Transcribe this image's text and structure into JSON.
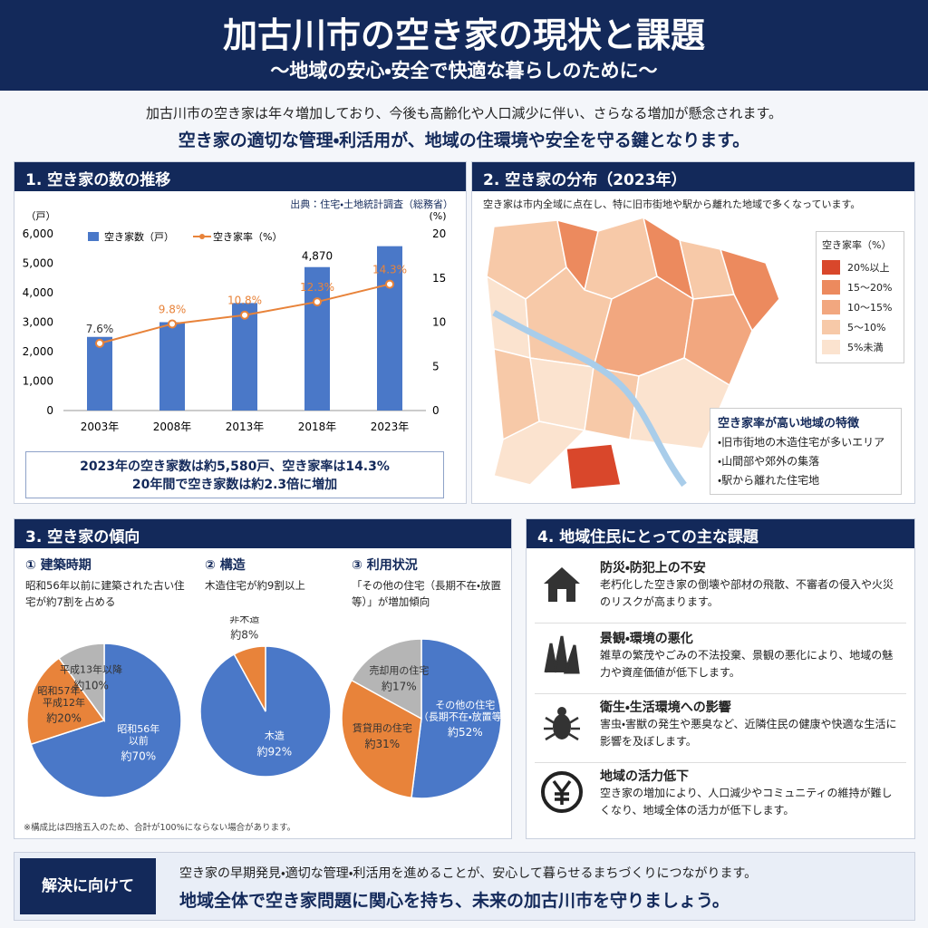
{
  "header": {
    "title": "加古川市の空き家の現状と課題",
    "subtitle": "～地域の安心・安全で快適な暮らしのために～"
  },
  "intro": [
    "加古川市の空き家は年々増加しており、今後も高齢化や人口減少に伴い、さらなる増加が懸念されます。",
    "空き家の適切な管理・利活用が、地域の住環境や安全を守る鍵となります。"
  ],
  "sections": [
    {
      "title": "1. 空き家の数の推移",
      "source": "出典：住宅・土地統計調査（総務省）",
      "summary": [
        "2023年の空き家数は約5,580戸、空き家率は14.3%",
        "20年間で空き家数は約2.3倍に増加"
      ]
    },
    {
      "title": "2. 空き家の分布（2023年）",
      "description": "空き家は市内全域に点在し、特に旧市街地や駅から離れた地域で多くなっています。",
      "legend_title": "空き家率（%）",
      "legend": [
        {
          "label": "20%以上",
          "color": "#d9472b"
        },
        {
          "label": "15～20%",
          "color": "#ec8a5e"
        },
        {
          "label": "10～15%",
          "color": "#f2a77f"
        },
        {
          "label": "5～10%",
          "color": "#f7c9a8"
        },
        {
          "label": "5%未満",
          "color": "#fbe3cf"
        }
      ],
      "features_title": "空き家率が高い地域の特徴",
      "features": [
        "・旧市街地の木造住宅が多いエリア",
        "・山間部や郊外の集落",
        "・駅から離れた住宅地"
      ]
    },
    {
      "title": "3. 空き家の傾向",
      "note": "※構成比は四捨五入のため、合計が100%にならない場合があります。",
      "panels": [
        {
          "heading": "① 建築時期",
          "description": "昭和56年以前に建築された古い住宅が約7割を占める"
        },
        {
          "heading": "② 構造",
          "description": "木造住宅が約9割以上"
        },
        {
          "heading": "③ 利用状況",
          "description": "「その他の住宅（長期不在・放置等）」が増加傾向"
        }
      ]
    },
    {
      "title": "4. 地域住民にとっての主な課題",
      "items": [
        {
          "title": "防災・防犯上の不安",
          "text": "老朽化した空き家の倒壊や部材の飛散、不審者の侵入や火災のリスクが高まります。"
        },
        {
          "title": "景観・環境の悪化",
          "text": "雑草の繁茂やごみの不法投棄、景観の悪化により、地域の魅力や資産価値が低下します。"
        },
        {
          "title": "衛生・生活環境への影響",
          "text": "害虫・害獣の発生や悪臭など、近隣住民の健康や快適な生活に影響を及ぼします。"
        },
        {
          "title": "地域の活力低下",
          "text": "空き家の増加により、人口減少やコミュニティの維持が難しくなり、地域全体の活力が低下します。"
        }
      ]
    }
  ],
  "footer": {
    "label": "解決に向けて",
    "text": "空き家の早期発見・適切な管理・利活用を進めることが、安心して暮らせるまちづくりにつながります。",
    "emphasis": "地域全体で空き家問題に関心を持ち、未来の加古川市を守りましょう。"
  },
  "chart_data": [
    {
      "type": "bar_line",
      "categories": [
        "2003年",
        "2008年",
        "2013年",
        "2018年",
        "2023年"
      ],
      "ylabel": "（戸）",
      "y2label": "(%)",
      "ylim": [
        0,
        6000
      ],
      "yticks": [
        0,
        {
          "value": 1000,
          "label": "1,000"
        },
        {
          "value": 2000,
          "label": "2,000"
        },
        {
          "value": 3000,
          "label": "3,000"
        },
        {
          "value": 4000,
          "label": "4,000"
        },
        {
          "value": 5000,
          "label": "5,000"
        },
        {
          "value": 6000,
          "label": "6,000"
        }
      ],
      "y2lim": [
        0,
        20
      ],
      "y2ticks": [
        0,
        5,
        10,
        15,
        20
      ],
      "series": [
        {
          "name": "空き家数（戸）",
          "kind": "bar",
          "color": "#4a78c8",
          "values": [
            2500,
            3000,
            3650,
            4870,
            5580
          ],
          "value_labels": [
            null,
            null,
            null,
            "4,870",
            null
          ]
        },
        {
          "name": "空き家率（%）",
          "kind": "line",
          "axis": "y2",
          "color": "#e8833a",
          "values": [
            7.6,
            9.8,
            10.8,
            12.3,
            14.3
          ],
          "value_labels": [
            "7.6%",
            "9.8%",
            "10.8%",
            "12.3%",
            "14.3%"
          ]
        }
      ]
    },
    {
      "type": "pie",
      "categories": [
        "昭和56年\n以前",
        "昭和57年～\n平成12年",
        "平成13年以降"
      ],
      "values": [
        70,
        20,
        10
      ],
      "value_labels": [
        "約70%",
        "約20%",
        "約10%"
      ],
      "colors": [
        "#4a78c8",
        "#e8833a",
        "#b5b5b5"
      ]
    },
    {
      "type": "pie",
      "categories": [
        "木造",
        "非木造"
      ],
      "values": [
        92,
        8
      ],
      "value_labels": [
        "約92%",
        "約8%"
      ],
      "colors": [
        "#4a78c8",
        "#e8833a"
      ]
    },
    {
      "type": "pie",
      "categories": [
        "その他の住宅\n（長期不在・放置等）",
        "賃貸用の住宅",
        "売却用の住宅"
      ],
      "values": [
        52,
        31,
        17
      ],
      "value_labels": [
        "約52%",
        "約31%",
        "約17%"
      ],
      "colors": [
        "#4a78c8",
        "#e8833a",
        "#b5b5b5"
      ]
    }
  ]
}
